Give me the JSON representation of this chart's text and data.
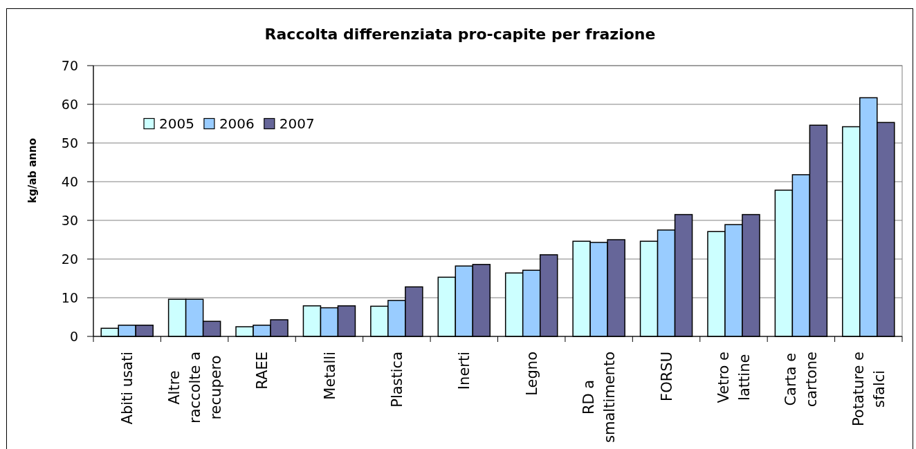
{
  "chart_data": {
    "type": "bar",
    "title": "Raccolta differenziata pro-capite per frazione",
    "ylabel": "kg/ab anno",
    "categories": [
      "Abiti usati",
      "Altre raccolte a recupero",
      "RAEE",
      "Metalli",
      "Plastica",
      "Inerti",
      "Legno",
      "RD a smaltimento",
      "FORSU",
      "Vetro e lattine",
      "Carta e cartone",
      "Potature e sfalci"
    ],
    "series": [
      {
        "name": "2005",
        "color": "#ccffff",
        "values": [
          2.1,
          9.6,
          2.5,
          7.9,
          7.8,
          15.3,
          16.4,
          24.6,
          24.6,
          27.1,
          37.8,
          54.2
        ]
      },
      {
        "name": "2006",
        "color": "#99ccff",
        "values": [
          2.9,
          9.6,
          2.9,
          7.4,
          9.3,
          18.2,
          17.1,
          24.3,
          27.5,
          28.9,
          41.8,
          61.7
        ]
      },
      {
        "name": "2007",
        "color": "#666699",
        "values": [
          2.9,
          3.9,
          4.3,
          7.9,
          12.8,
          18.6,
          21.1,
          25.0,
          31.5,
          31.5,
          54.6,
          55.3
        ]
      }
    ],
    "ylim": [
      0,
      70
    ],
    "yticks": [
      0,
      10,
      20,
      30,
      40,
      50,
      60,
      70
    ],
    "grid": "y",
    "legend": "top left"
  }
}
